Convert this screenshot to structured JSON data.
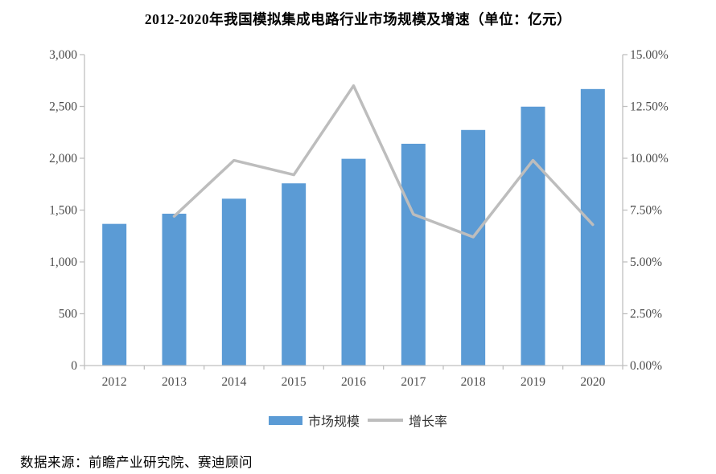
{
  "title": "2012-2020年我国模拟集成电路行业市场规模及增速（单位：亿元）",
  "source": "数据来源：前瞻产业研究院、赛迪顾问",
  "colors": {
    "bar": "#5B9BD5",
    "line": "#BDBDBD",
    "axis": "#BFBFBF",
    "tick_label": "#4d4d4d"
  },
  "legend": [
    {
      "label": "市场规模",
      "type": "bar",
      "color": "#5B9BD5"
    },
    {
      "label": "增长率",
      "type": "line",
      "color": "#BDBDBD"
    }
  ],
  "chart_data": {
    "type": "bar",
    "title": "2012-2020年我国模拟集成电路行业市场规模及增速（单位：亿元）",
    "categories": [
      "2012",
      "2013",
      "2014",
      "2015",
      "2016",
      "2017",
      "2018",
      "2019",
      "2020"
    ],
    "series": [
      {
        "name": "市场规模",
        "type": "bar",
        "axis": "left",
        "unit": "亿元",
        "color": "#5B9BD5",
        "values": [
          1367,
          1465,
          1610,
          1758,
          1995,
          2140,
          2273,
          2498,
          2668
        ]
      },
      {
        "name": "增长率",
        "type": "line",
        "axis": "right",
        "unit": "%",
        "color": "#BDBDBD",
        "values": [
          null,
          7.2,
          9.9,
          9.2,
          13.5,
          7.3,
          6.2,
          9.9,
          6.8
        ]
      }
    ],
    "left_axis": {
      "min": 0,
      "max": 3000,
      "step": 500,
      "tick_labels": [
        "0",
        "500",
        "1,000",
        "1,500",
        "2,000",
        "2,500",
        "3,000"
      ]
    },
    "right_axis": {
      "min": 0,
      "max": 15,
      "step": 2.5,
      "tick_labels": [
        "0.00%",
        "2.50%",
        "5.00%",
        "7.50%",
        "10.00%",
        "12.50%",
        "15.00%"
      ]
    },
    "grid": false,
    "legend_position": "bottom"
  }
}
